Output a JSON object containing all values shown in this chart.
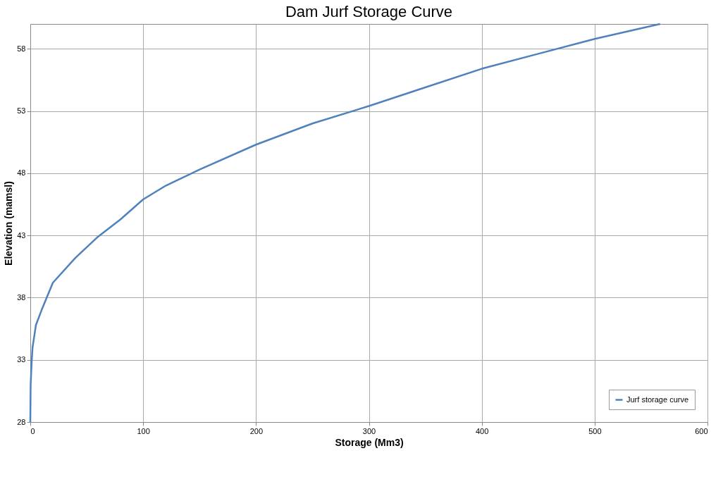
{
  "chart_data": {
    "type": "line",
    "title": "Dam Jurf Storage Curve",
    "xlabel": "Storage (Mm3)",
    "ylabel": "Elevation (mamsl)",
    "x": [
      0,
      0.3,
      1.3,
      2,
      5,
      10,
      20,
      40,
      60,
      80,
      100,
      120,
      150,
      200,
      250,
      300,
      350,
      400,
      450,
      500,
      558
    ],
    "series": [
      {
        "name": "Jurf storage curve",
        "color": "#4f81bd",
        "values": [
          28,
          31,
          33,
          34,
          35.8,
          37,
          39.2,
          41.2,
          42.9,
          44.3,
          45.9,
          47,
          48.3,
          50.3,
          52,
          53.4,
          54.9,
          56.4,
          57.6,
          58.8,
          60
        ]
      }
    ],
    "xlim": [
      0,
      600
    ],
    "xticks": [
      0,
      100,
      200,
      300,
      400,
      500,
      600
    ],
    "ylim": [
      28,
      60
    ],
    "yticks": [
      28,
      33,
      38,
      43,
      48,
      53,
      58
    ],
    "grid": true,
    "legend": "bottom right",
    "marker": "none",
    "line_style": "solid"
  }
}
